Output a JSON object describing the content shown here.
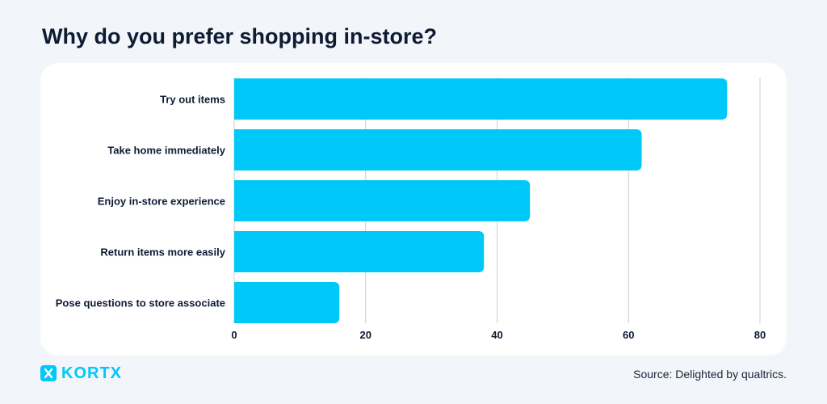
{
  "title": "Why do you prefer shopping in-store?",
  "source": "Source: Delighted by qualtrics.",
  "brand": {
    "name": "KORTX",
    "color": "#00c8f8",
    "icon": "kortx-x-logo-icon"
  },
  "colors": {
    "bar": "#00c8f8",
    "grid": "#c9ced6",
    "text": "#0e1b33"
  },
  "chart_data": {
    "type": "bar",
    "orientation": "horizontal",
    "categories": [
      "Try out items",
      "Take home immediately",
      "Enjoy in-store experience",
      "Return items more easily",
      "Pose questions to store associate"
    ],
    "values": [
      75,
      62,
      45,
      38,
      16
    ],
    "title": "Why do you prefer shopping in-store?",
    "xlabel": "",
    "ylabel": "",
    "xlim": [
      0,
      80
    ],
    "xticks": [
      0,
      20,
      40,
      60,
      80
    ],
    "grid": true,
    "legend": "none"
  }
}
